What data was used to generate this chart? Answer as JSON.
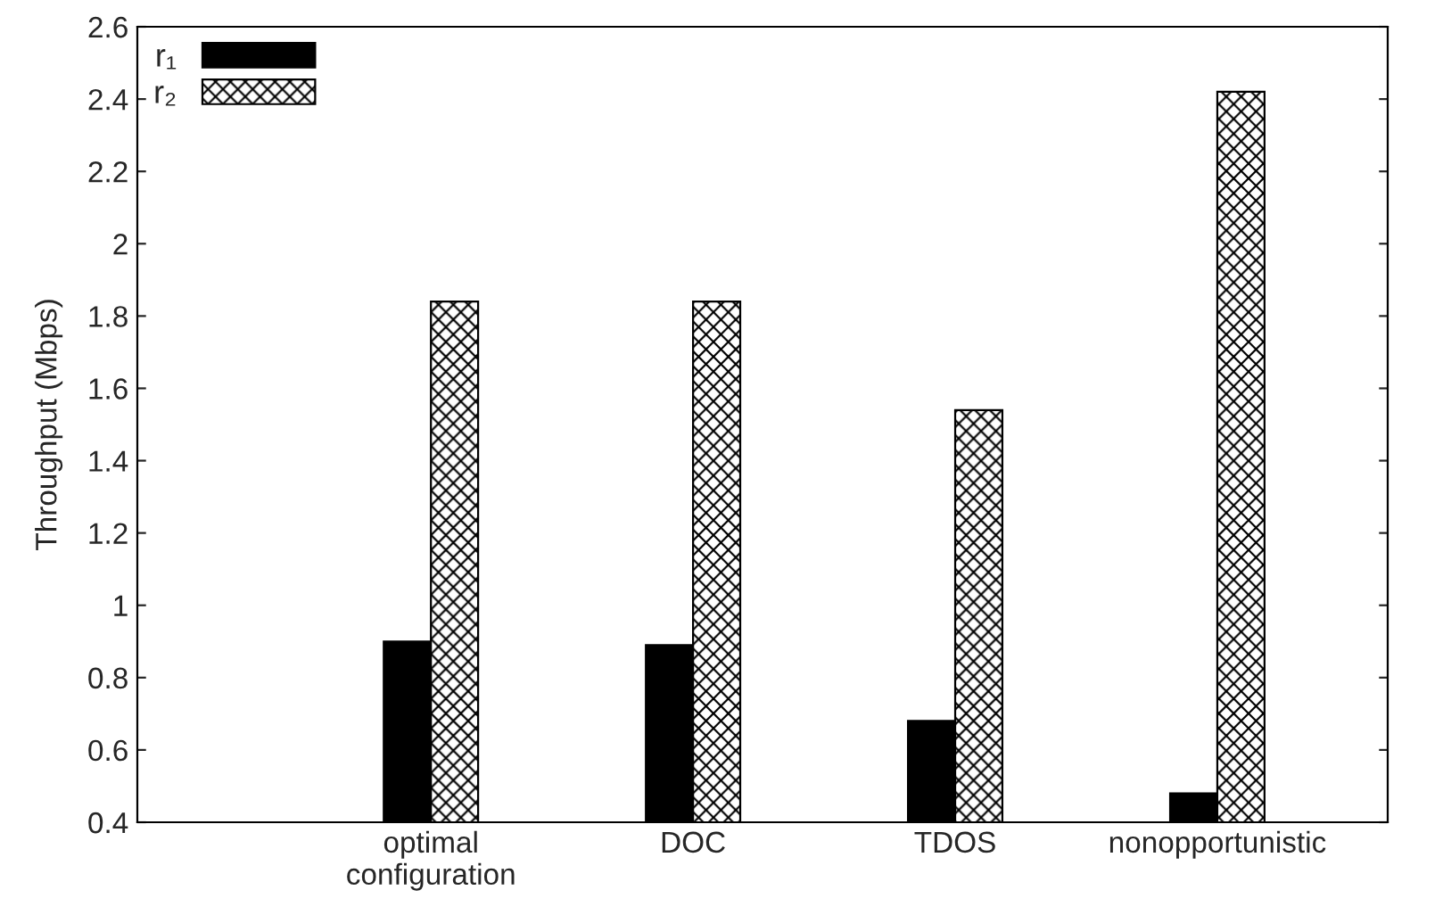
{
  "chart_data": {
    "type": "bar",
    "ylabel": "Throughput (Mbps)",
    "categories": [
      "optimal\nconfiguration",
      "DOC",
      "TDOS",
      "nonopportunistic"
    ],
    "series": [
      {
        "name": "r₁",
        "color": "#000000",
        "values": [
          0.9,
          0.89,
          0.68,
          0.48
        ]
      },
      {
        "name": "r₂",
        "color": "#000000",
        "values": [
          1.84,
          1.84,
          1.54,
          2.42
        ]
      }
    ],
    "ylim": [
      0.4,
      2.6
    ],
    "yticks": [
      0.4,
      0.6,
      0.8,
      1,
      1.2,
      1.4,
      1.6,
      1.8,
      2,
      2.2,
      2.4,
      2.6
    ],
    "grid": false,
    "legend": "top left"
  }
}
